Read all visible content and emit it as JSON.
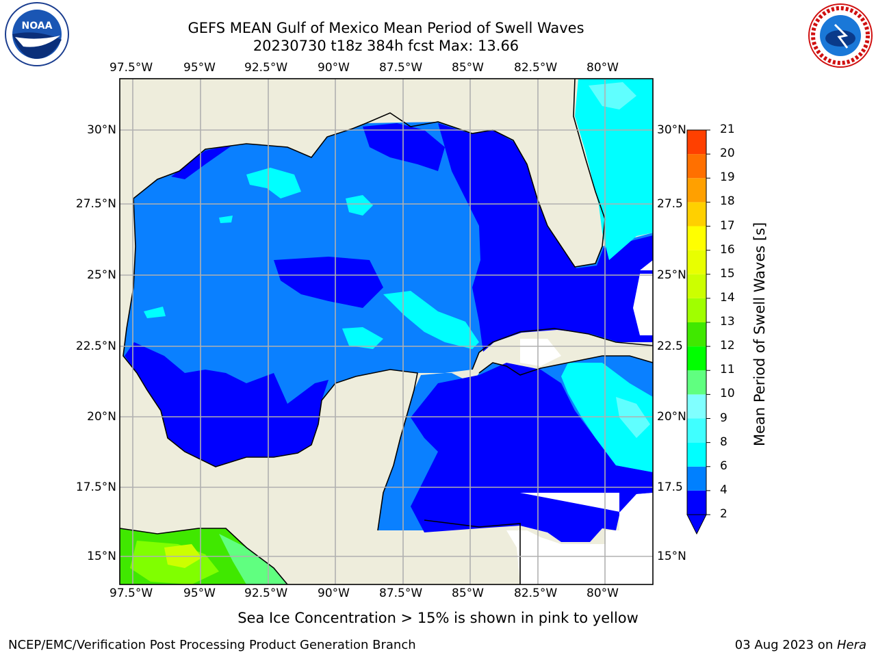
{
  "header": {
    "title_line1": "GEFS MEAN Gulf of Mexico Mean Period of Swell Waves",
    "title_line2": "20230730 t18z 384h fcst   Max: 13.66"
  },
  "logos": {
    "left": {
      "name": "noaa-logo",
      "text": "NOAA"
    },
    "right": {
      "name": "nws-logo",
      "text": "NATIONAL WEATHER SERVICE"
    }
  },
  "map": {
    "lon_ticks": [
      "97.5°W",
      "95°W",
      "92.5°W",
      "90°W",
      "87.5°W",
      "85°W",
      "82.5°W",
      "80°W"
    ],
    "lat_ticks_left": [
      "30°N",
      "27.5°N",
      "25°N",
      "22.5°N",
      "20°N",
      "17.5°N",
      "15°N"
    ],
    "lat_ticks_right": [
      "30°N",
      "27.5",
      "25°N",
      "22.5",
      "20°N",
      "17.5",
      "15°N"
    ],
    "colors": {
      "land": "#eeeddc",
      "coast": "#000000",
      "grid": "#b0b0b0"
    }
  },
  "colorbar": {
    "label": "Mean Period of Swell Waves [s]",
    "ticks": [
      "2",
      "4",
      "6",
      "8",
      "9",
      "10",
      "11",
      "12",
      "13",
      "14",
      "15",
      "16",
      "17",
      "18",
      "19",
      "20",
      "21"
    ],
    "colors": [
      "#0000ff",
      "#0080ff",
      "#00ffff",
      "#40ffff",
      "#80ffff",
      "#60ff80",
      "#00ff00",
      "#40e800",
      "#a0ff00",
      "#ccff00",
      "#e8ff00",
      "#ffff00",
      "#ffd000",
      "#ffa000",
      "#ff7000",
      "#ff4000",
      "#ff0000"
    ]
  },
  "caption": "Sea Ice Concentration > 15% is shown in pink to yellow",
  "footer": {
    "left": "NCEP/EMC/Verification Post Processing Product Generation Branch",
    "right_date": "03 Aug 2023 on ",
    "right_host": "Hera"
  }
}
